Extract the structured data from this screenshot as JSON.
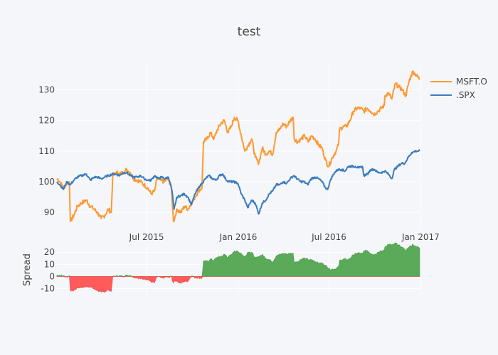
{
  "colors": {
    "background": "#f5f6f9",
    "msft": "#ff9933",
    "spx": "#3a7dbf",
    "spread_pos": "#5aaa5a",
    "spread_neg": "#ff5b5b"
  },
  "chart_data": [
    {
      "type": "line",
      "title": "test",
      "xlabel": "",
      "ylabel": "",
      "x_ticks": [
        "Jul 2015",
        "Jan 2016",
        "Jul 2016",
        "Jan 2017"
      ],
      "x_tick_dates": [
        "2015-07-01",
        "2016-01-01",
        "2016-07-01",
        "2017-01-01"
      ],
      "x_range": [
        "2015-01-02",
        "2016-12-30"
      ],
      "y_ticks": [
        90,
        100,
        110,
        120,
        130
      ],
      "ylim": [
        84,
        138
      ],
      "grid": true,
      "legend_position": "top-right",
      "series": [
        {
          "name": "MSFT.O",
          "points": [
            [
              "2015-01-02",
              101
            ],
            [
              "2015-01-08",
              100
            ],
            [
              "2015-01-15",
              98
            ],
            [
              "2015-01-22",
              99.5
            ],
            [
              "2015-01-27",
              100
            ],
            [
              "2015-01-29",
              87
            ],
            [
              "2015-02-05",
              89
            ],
            [
              "2015-02-12",
              92
            ],
            [
              "2015-02-20",
              93
            ],
            [
              "2015-03-02",
              94
            ],
            [
              "2015-03-10",
              92
            ],
            [
              "2015-03-18",
              91
            ],
            [
              "2015-03-24",
              90
            ],
            [
              "2015-04-01",
              88
            ],
            [
              "2015-04-08",
              89
            ],
            [
              "2015-04-15",
              91
            ],
            [
              "2015-04-21",
              90
            ],
            [
              "2015-04-24",
              102
            ],
            [
              "2015-05-01",
              103
            ],
            [
              "2015-05-08",
              102.5
            ],
            [
              "2015-05-15",
              103
            ],
            [
              "2015-05-22",
              104
            ],
            [
              "2015-05-29",
              103
            ],
            [
              "2015-06-05",
              101
            ],
            [
              "2015-06-12",
              100.5
            ],
            [
              "2015-06-19",
              100
            ],
            [
              "2015-06-26",
              99
            ],
            [
              "2015-07-03",
              98
            ],
            [
              "2015-07-10",
              96
            ],
            [
              "2015-07-17",
              97
            ],
            [
              "2015-07-22",
              101
            ],
            [
              "2015-07-29",
              100.5
            ],
            [
              "2015-08-05",
              100
            ],
            [
              "2015-08-12",
              101
            ],
            [
              "2015-08-19",
              99
            ],
            [
              "2015-08-24",
              87
            ],
            [
              "2015-08-31",
              91
            ],
            [
              "2015-09-08",
              90
            ],
            [
              "2015-09-15",
              92
            ],
            [
              "2015-09-22",
              91
            ],
            [
              "2015-09-29",
              93
            ],
            [
              "2015-10-06",
              95
            ],
            [
              "2015-10-13",
              97
            ],
            [
              "2015-10-20",
              98
            ],
            [
              "2015-10-23",
              113
            ],
            [
              "2015-10-30",
              114
            ],
            [
              "2015-11-06",
              116
            ],
            [
              "2015-11-13",
              114
            ],
            [
              "2015-11-20",
              117
            ],
            [
              "2015-11-27",
              119
            ],
            [
              "2015-12-04",
              120
            ],
            [
              "2015-12-11",
              116
            ],
            [
              "2015-12-18",
              118
            ],
            [
              "2015-12-24",
              121
            ],
            [
              "2015-12-31",
              120
            ],
            [
              "2016-01-07",
              115
            ],
            [
              "2016-01-14",
              110
            ],
            [
              "2016-01-21",
              112
            ],
            [
              "2016-01-28",
              114
            ],
            [
              "2016-02-04",
              108
            ],
            [
              "2016-02-11",
              106
            ],
            [
              "2016-02-18",
              111
            ],
            [
              "2016-02-25",
              109
            ],
            [
              "2016-03-03",
              110
            ],
            [
              "2016-03-10",
              109
            ],
            [
              "2016-03-17",
              116
            ],
            [
              "2016-03-24",
              117
            ],
            [
              "2016-03-31",
              119
            ],
            [
              "2016-04-07",
              118
            ],
            [
              "2016-04-14",
              120
            ],
            [
              "2016-04-20",
              121
            ],
            [
              "2016-04-22",
              114
            ],
            [
              "2016-04-29",
              113
            ],
            [
              "2016-05-06",
              114
            ],
            [
              "2016-05-13",
              115
            ],
            [
              "2016-05-20",
              113
            ],
            [
              "2016-05-27",
              115
            ],
            [
              "2016-06-03",
              114
            ],
            [
              "2016-06-10",
              112
            ],
            [
              "2016-06-17",
              111
            ],
            [
              "2016-06-24",
              107
            ],
            [
              "2016-06-30",
              105
            ],
            [
              "2016-07-08",
              108
            ],
            [
              "2016-07-15",
              110
            ],
            [
              "2016-07-20",
              112
            ],
            [
              "2016-07-22",
              117
            ],
            [
              "2016-07-29",
              118
            ],
            [
              "2016-08-05",
              118
            ],
            [
              "2016-08-12",
              120
            ],
            [
              "2016-08-19",
              123
            ],
            [
              "2016-08-26",
              124
            ],
            [
              "2016-09-02",
              124
            ],
            [
              "2016-09-09",
              123
            ],
            [
              "2016-09-16",
              124
            ],
            [
              "2016-09-23",
              123
            ],
            [
              "2016-09-30",
              122
            ],
            [
              "2016-10-07",
              123
            ],
            [
              "2016-10-14",
              124
            ],
            [
              "2016-10-20",
              125
            ],
            [
              "2016-10-21",
              128
            ],
            [
              "2016-10-28",
              129
            ],
            [
              "2016-11-04",
              127
            ],
            [
              "2016-11-11",
              132
            ],
            [
              "2016-11-18",
              131
            ],
            [
              "2016-11-25",
              130
            ],
            [
              "2016-12-02",
              128
            ],
            [
              "2016-12-09",
              133
            ],
            [
              "2016-12-16",
              136
            ],
            [
              "2016-12-22",
              135
            ],
            [
              "2016-12-30",
              133.5
            ]
          ]
        },
        {
          "name": ".SPX",
          "points": [
            [
              "2015-01-02",
              100
            ],
            [
              "2015-01-08",
              99
            ],
            [
              "2015-01-15",
              97.5
            ],
            [
              "2015-01-22",
              100
            ],
            [
              "2015-01-29",
              99
            ],
            [
              "2015-02-05",
              100.5
            ],
            [
              "2015-02-12",
              101.5
            ],
            [
              "2015-02-20",
              102
            ],
            [
              "2015-03-02",
              102.5
            ],
            [
              "2015-03-10",
              100.5
            ],
            [
              "2015-03-18",
              101.5
            ],
            [
              "2015-03-24",
              101.5
            ],
            [
              "2015-04-01",
              101
            ],
            [
              "2015-04-08",
              101.5
            ],
            [
              "2015-04-15",
              102
            ],
            [
              "2015-04-24",
              102.5
            ],
            [
              "2015-05-01",
              102.5
            ],
            [
              "2015-05-08",
              102
            ],
            [
              "2015-05-15",
              103
            ],
            [
              "2015-05-22",
              103
            ],
            [
              "2015-05-29",
              102
            ],
            [
              "2015-06-05",
              101.5
            ],
            [
              "2015-06-12",
              101.5
            ],
            [
              "2015-06-19",
              102
            ],
            [
              "2015-06-26",
              101
            ],
            [
              "2015-07-03",
              100.5
            ],
            [
              "2015-07-10",
              100.5
            ],
            [
              "2015-07-17",
              102
            ],
            [
              "2015-07-24",
              101
            ],
            [
              "2015-07-31",
              101.5
            ],
            [
              "2015-08-07",
              101
            ],
            [
              "2015-08-14",
              101.5
            ],
            [
              "2015-08-21",
              97
            ],
            [
              "2015-08-25",
              91
            ],
            [
              "2015-08-31",
              95
            ],
            [
              "2015-09-08",
              95.5
            ],
            [
              "2015-09-15",
              96
            ],
            [
              "2015-09-22",
              95
            ],
            [
              "2015-09-29",
              92.5
            ],
            [
              "2015-10-06",
              96
            ],
            [
              "2015-10-13",
              98
            ],
            [
              "2015-10-20",
              99.5
            ],
            [
              "2015-10-27",
              101
            ],
            [
              "2015-11-03",
              102
            ],
            [
              "2015-11-10",
              101
            ],
            [
              "2015-11-17",
              100.5
            ],
            [
              "2015-11-24",
              102
            ],
            [
              "2015-12-01",
              102.5
            ],
            [
              "2015-12-08",
              100.5
            ],
            [
              "2015-12-15",
              100
            ],
            [
              "2015-12-22",
              100
            ],
            [
              "2015-12-31",
              99.5
            ],
            [
              "2016-01-07",
              96
            ],
            [
              "2016-01-14",
              94
            ],
            [
              "2016-01-20",
              91.5
            ],
            [
              "2016-01-28",
              94
            ],
            [
              "2016-02-04",
              93
            ],
            [
              "2016-02-11",
              89.5
            ],
            [
              "2016-02-18",
              93
            ],
            [
              "2016-02-25",
              94
            ],
            [
              "2016-03-03",
              96
            ],
            [
              "2016-03-10",
              97
            ],
            [
              "2016-03-17",
              99
            ],
            [
              "2016-03-24",
              99
            ],
            [
              "2016-03-31",
              100
            ],
            [
              "2016-04-07",
              99.5
            ],
            [
              "2016-04-14",
              101
            ],
            [
              "2016-04-21",
              102
            ],
            [
              "2016-04-28",
              101
            ],
            [
              "2016-05-05",
              100
            ],
            [
              "2016-05-12",
              100
            ],
            [
              "2016-05-19",
              99
            ],
            [
              "2016-05-26",
              101
            ],
            [
              "2016-06-03",
              101.5
            ],
            [
              "2016-06-10",
              101
            ],
            [
              "2016-06-17",
              100
            ],
            [
              "2016-06-24",
              98
            ],
            [
              "2016-06-28",
              97.5
            ],
            [
              "2016-07-05",
              101
            ],
            [
              "2016-07-12",
              103
            ],
            [
              "2016-07-19",
              104
            ],
            [
              "2016-07-26",
              104
            ],
            [
              "2016-08-02",
              103.5
            ],
            [
              "2016-08-09",
              105
            ],
            [
              "2016-08-16",
              105
            ],
            [
              "2016-08-23",
              105
            ],
            [
              "2016-08-30",
              104.5
            ],
            [
              "2016-09-06",
              105
            ],
            [
              "2016-09-09",
              102
            ],
            [
              "2016-09-16",
              102.5
            ],
            [
              "2016-09-23",
              104
            ],
            [
              "2016-09-30",
              104
            ],
            [
              "2016-10-07",
              103
            ],
            [
              "2016-10-14",
              103
            ],
            [
              "2016-10-21",
              103.5
            ],
            [
              "2016-10-28",
              102.5
            ],
            [
              "2016-11-04",
              101
            ],
            [
              "2016-11-09",
              104
            ],
            [
              "2016-11-16",
              105
            ],
            [
              "2016-11-23",
              106
            ],
            [
              "2016-11-30",
              106
            ],
            [
              "2016-12-07",
              108
            ],
            [
              "2016-12-14",
              109.5
            ],
            [
              "2016-12-21",
              110
            ],
            [
              "2016-12-30",
              110
            ]
          ]
        }
      ]
    },
    {
      "type": "area",
      "title": "",
      "xlabel": "",
      "ylabel": "Spread",
      "y_ticks": [
        -10,
        0,
        10,
        20
      ],
      "ylim": [
        -15,
        26
      ],
      "grid": true,
      "series": [
        {
          "values_from": "MSFT.O minus .SPX"
        }
      ]
    }
  ]
}
